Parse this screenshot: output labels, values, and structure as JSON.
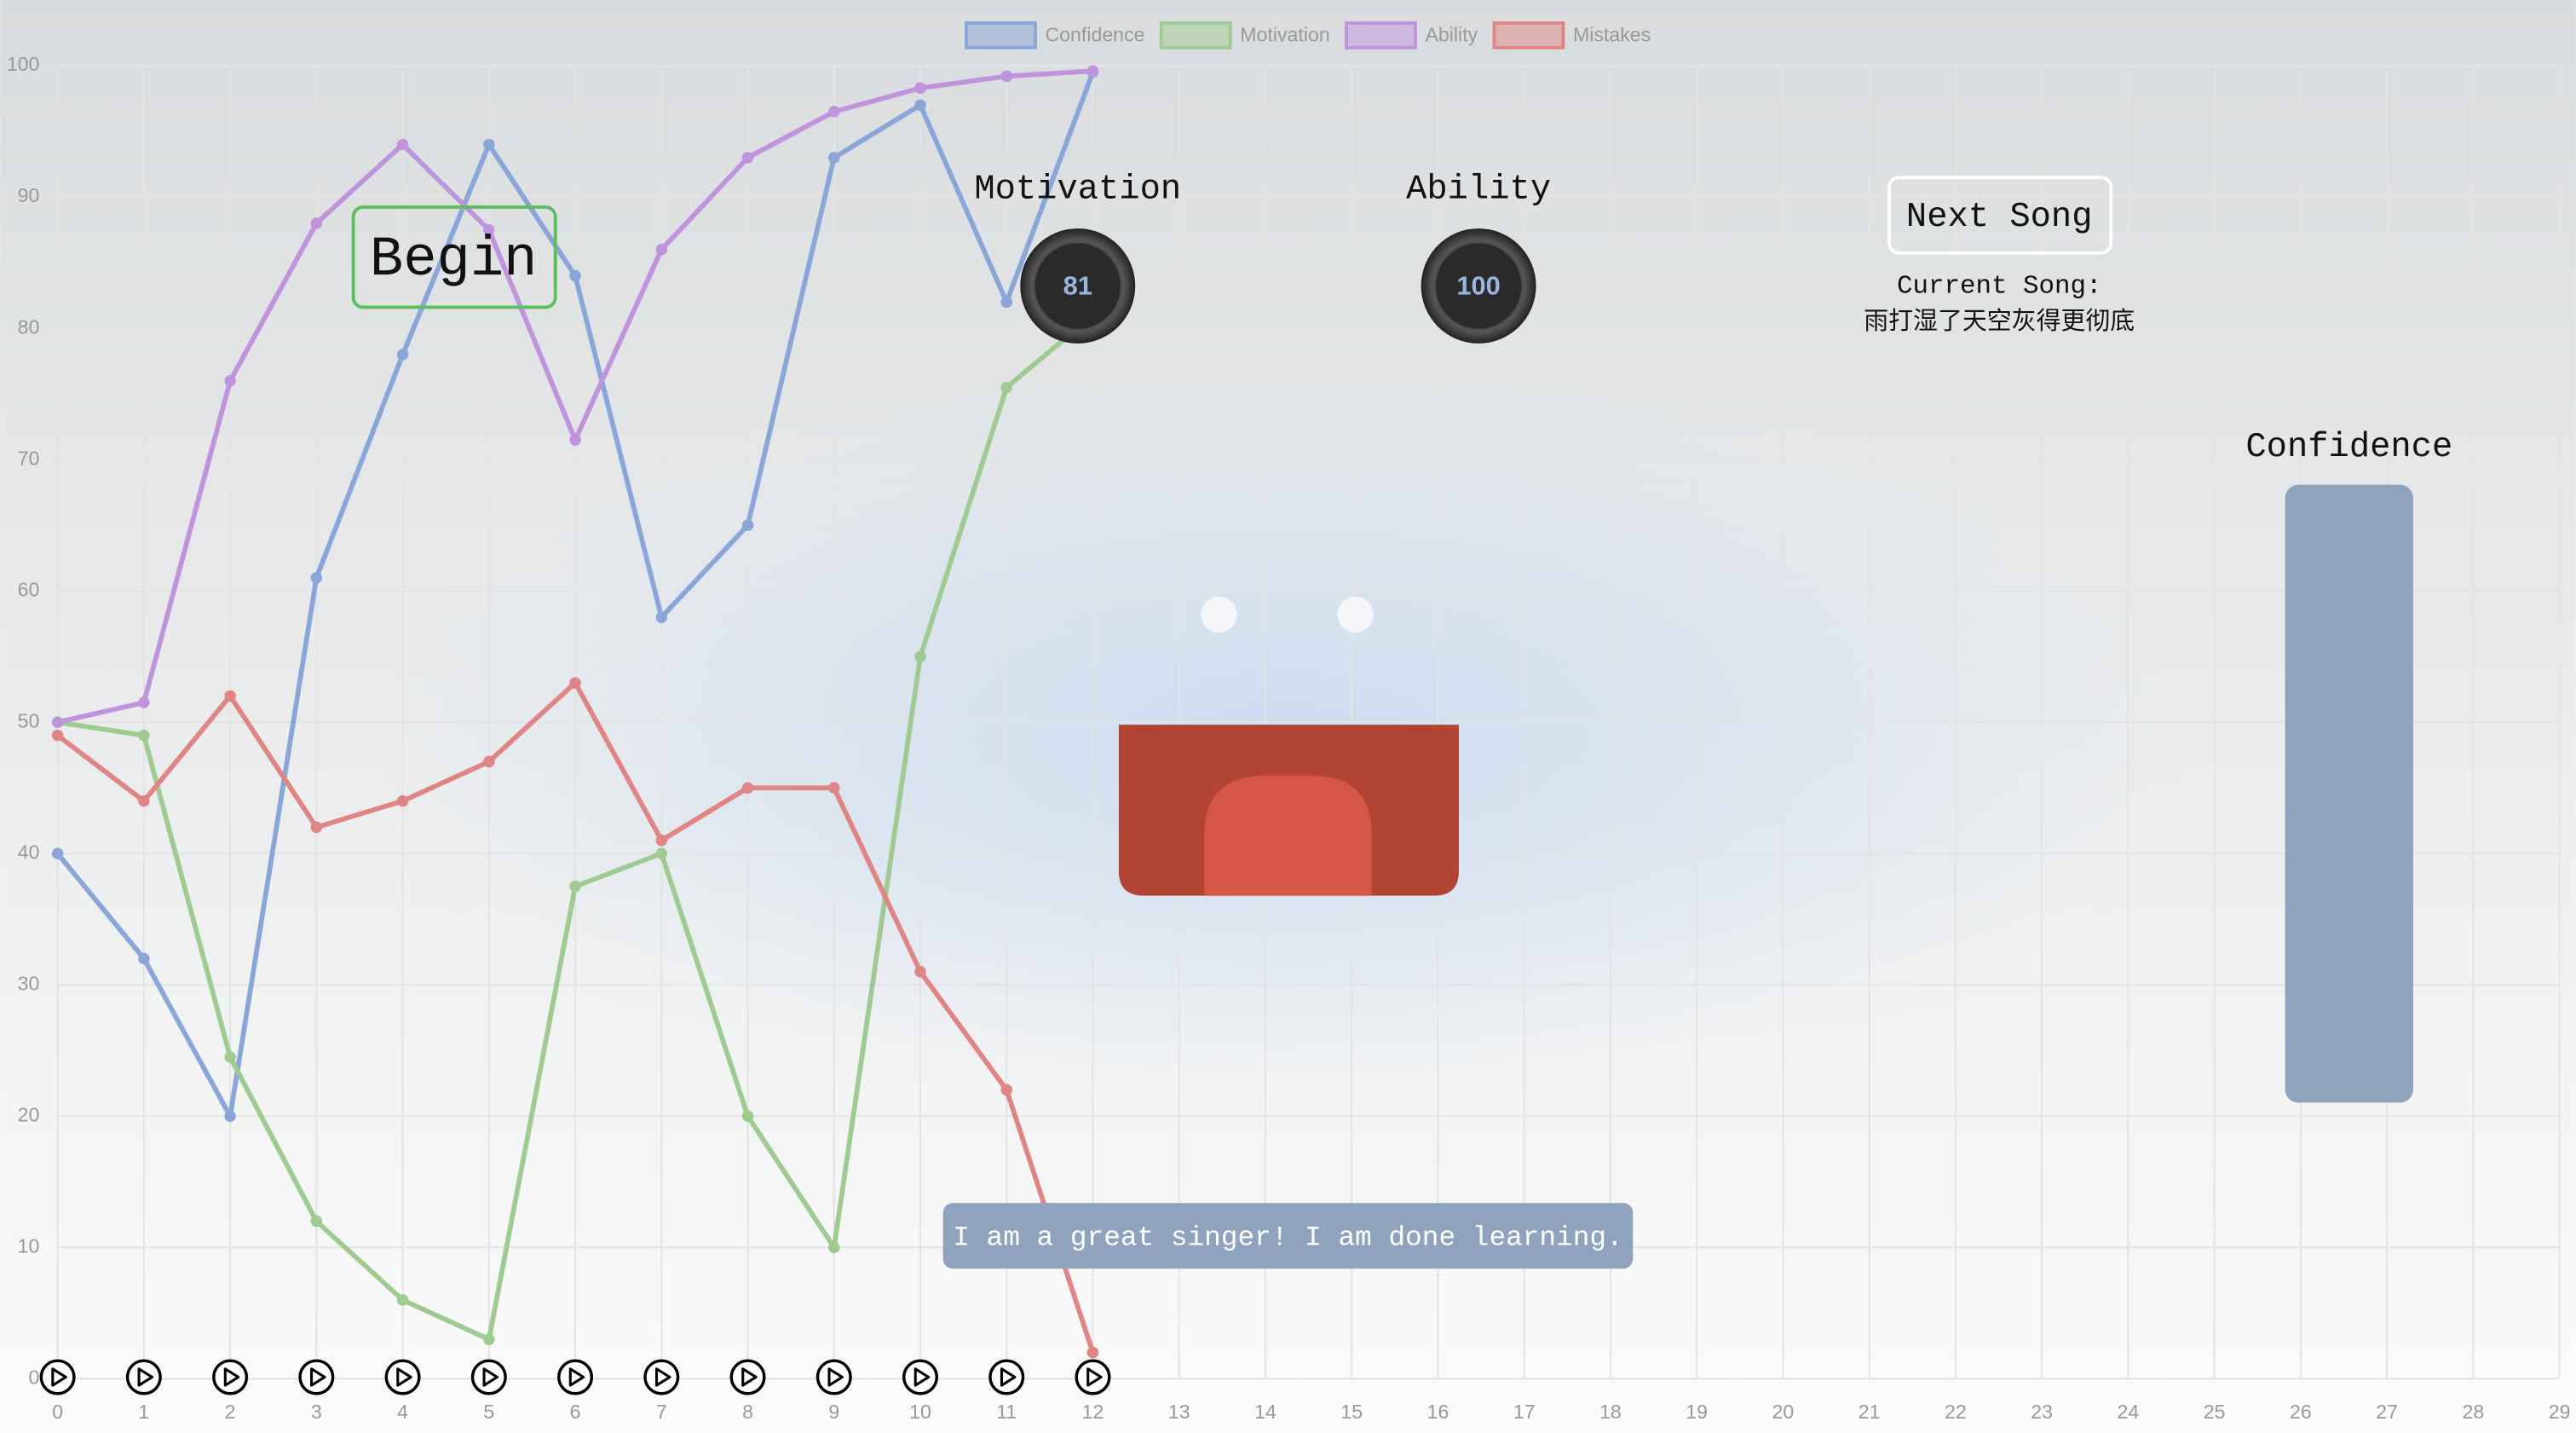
{
  "chart_data": {
    "type": "line",
    "x": [
      0,
      1,
      2,
      3,
      4,
      5,
      6,
      7,
      8,
      9,
      10,
      11,
      12
    ],
    "series": [
      {
        "name": "Confidence",
        "color": "#8aa6d8",
        "values": [
          40,
          32,
          20,
          61,
          78,
          94,
          84,
          58,
          65,
          93,
          97,
          82,
          99.5
        ]
      },
      {
        "name": "Motivation",
        "color": "#9fcb92",
        "values": [
          50,
          49,
          24.5,
          12,
          6,
          3,
          37.5,
          40,
          20,
          10,
          55,
          75.5,
          81
        ]
      },
      {
        "name": "Ability",
        "color": "#c094dd",
        "values": [
          50,
          51.5,
          76,
          88,
          94,
          87.5,
          71.5,
          86,
          93,
          96.5,
          98.3,
          99.2,
          99.6
        ]
      },
      {
        "name": "Mistakes",
        "color": "#e08585",
        "values": [
          49,
          44,
          52,
          42,
          44,
          47,
          53,
          41,
          45,
          45,
          31,
          22,
          2
        ]
      }
    ],
    "xlim": [
      0,
      29
    ],
    "xticks": [
      0,
      1,
      2,
      3,
      4,
      5,
      6,
      7,
      8,
      9,
      10,
      11,
      12,
      13,
      14,
      15,
      16,
      17,
      18,
      19,
      20,
      21,
      22,
      23,
      24,
      25,
      26,
      27,
      28,
      29
    ],
    "ylim": [
      0,
      100
    ],
    "yticks": [
      0,
      10,
      20,
      30,
      40,
      50,
      60,
      70,
      80,
      90,
      100
    ],
    "grid": true,
    "legend_position": "top"
  },
  "gauges": [
    {
      "label": "Motivation",
      "value": 81
    },
    {
      "label": "Ability",
      "value": 100
    }
  ],
  "controls": {
    "begin": "Begin",
    "next_song": "Next Song",
    "current_song_label": "Current Song:",
    "current_song": "雨打湿了天空灰得更彻底",
    "confidence_label": "Confidence",
    "speech": "I am a great singer! I am done learning."
  }
}
